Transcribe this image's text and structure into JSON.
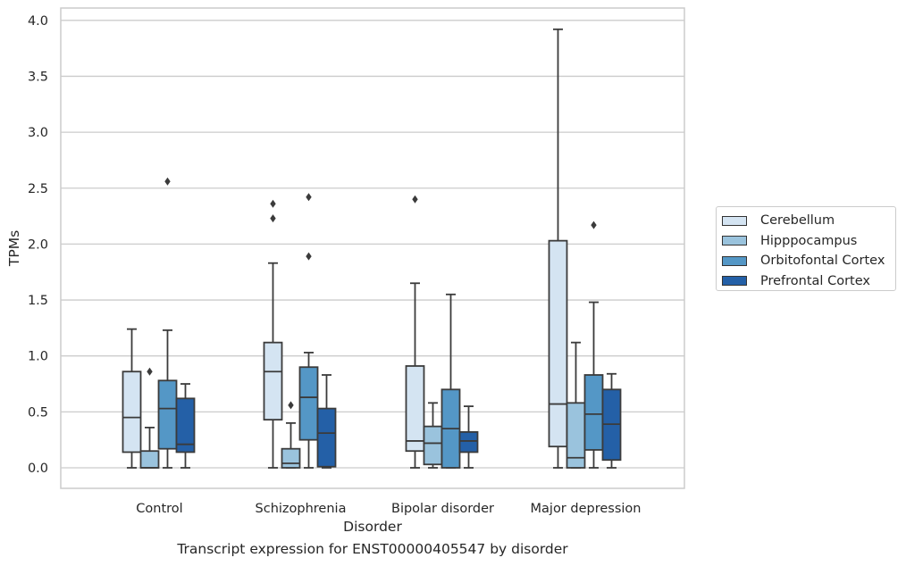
{
  "chart_data": {
    "type": "box",
    "xlabel": "Disorder",
    "ylabel": "TPMs",
    "caption": "Transcript expression for ENST00000405547 by disorder",
    "ylim": [
      -0.19,
      4.12
    ],
    "yticks": [
      0.0,
      0.5,
      1.0,
      1.5,
      2.0,
      2.5,
      3.0,
      3.5,
      4.0
    ],
    "ytick_labels": [
      "0.0",
      "0.5",
      "1.0",
      "1.5",
      "2.0",
      "2.5",
      "3.0",
      "3.5",
      "4.0"
    ],
    "grid": true,
    "legend_position": "right",
    "categories": [
      "Control",
      "Schizophrenia",
      "Bipolar disorder",
      "Major depression"
    ],
    "series": [
      {
        "name": "Cerebellum",
        "color": "#d4e4f2",
        "boxes": [
          {
            "whisker_low": 0.0,
            "q1": 0.14,
            "median": 0.45,
            "q3": 0.86,
            "whisker_high": 1.24,
            "outliers": []
          },
          {
            "whisker_low": 0.0,
            "q1": 0.43,
            "median": 0.86,
            "q3": 1.12,
            "whisker_high": 1.83,
            "outliers": [
              2.23,
              2.36
            ]
          },
          {
            "whisker_low": 0.0,
            "q1": 0.15,
            "median": 0.24,
            "q3": 0.91,
            "whisker_high": 1.65,
            "outliers": [
              2.4
            ]
          },
          {
            "whisker_low": 0.0,
            "q1": 0.19,
            "median": 0.57,
            "q3": 2.03,
            "whisker_high": 3.92,
            "outliers": []
          }
        ]
      },
      {
        "name": "Hipppocampus",
        "color": "#9ac3dd",
        "boxes": [
          {
            "whisker_low": 0.0,
            "q1": 0.0,
            "median": 0.0,
            "q3": 0.15,
            "whisker_high": 0.36,
            "outliers": [
              0.86
            ]
          },
          {
            "whisker_low": 0.0,
            "q1": 0.0,
            "median": 0.04,
            "q3": 0.17,
            "whisker_high": 0.4,
            "outliers": [
              0.56
            ]
          },
          {
            "whisker_low": 0.0,
            "q1": 0.03,
            "median": 0.22,
            "q3": 0.37,
            "whisker_high": 0.58,
            "outliers": []
          },
          {
            "whisker_low": 0.0,
            "q1": 0.0,
            "median": 0.09,
            "q3": 0.58,
            "whisker_high": 1.12,
            "outliers": []
          }
        ]
      },
      {
        "name": "Orbitofontal Cortex",
        "color": "#5497c6",
        "boxes": [
          {
            "whisker_low": 0.0,
            "q1": 0.17,
            "median": 0.53,
            "q3": 0.78,
            "whisker_high": 1.23,
            "outliers": [
              2.56
            ]
          },
          {
            "whisker_low": 0.0,
            "q1": 0.25,
            "median": 0.63,
            "q3": 0.9,
            "whisker_high": 1.03,
            "outliers": [
              1.89,
              2.42
            ]
          },
          {
            "whisker_low": 0.0,
            "q1": 0.0,
            "median": 0.35,
            "q3": 0.7,
            "whisker_high": 1.55,
            "outliers": []
          },
          {
            "whisker_low": 0.0,
            "q1": 0.16,
            "median": 0.48,
            "q3": 0.83,
            "whisker_high": 1.48,
            "outliers": [
              2.17
            ]
          }
        ]
      },
      {
        "name": "Prefrontal Cortex",
        "color": "#2460a7",
        "boxes": [
          {
            "whisker_low": 0.0,
            "q1": 0.14,
            "median": 0.21,
            "q3": 0.62,
            "whisker_high": 0.75,
            "outliers": []
          },
          {
            "whisker_low": 0.0,
            "q1": 0.01,
            "median": 0.31,
            "q3": 0.53,
            "whisker_high": 0.83,
            "outliers": []
          },
          {
            "whisker_low": 0.0,
            "q1": 0.14,
            "median": 0.24,
            "q3": 0.32,
            "whisker_high": 0.55,
            "outliers": []
          },
          {
            "whisker_low": 0.0,
            "q1": 0.07,
            "median": 0.39,
            "q3": 0.7,
            "whisker_high": 0.84,
            "outliers": []
          }
        ]
      }
    ]
  }
}
